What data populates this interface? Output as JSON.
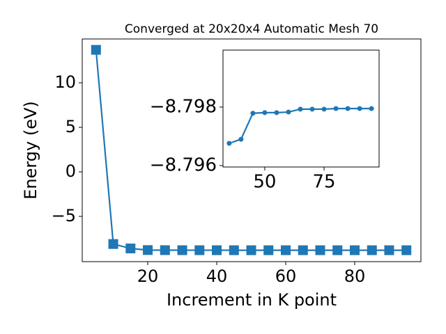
{
  "chart_data": [
    {
      "type": "line",
      "title": "Converged at 20x20x4 Automatic Mesh 70",
      "x_label": "Increment in K point",
      "y_label": "Energy (eV)",
      "x": [
        5,
        10,
        15,
        20,
        25,
        30,
        35,
        40,
        45,
        50,
        55,
        60,
        65,
        70,
        75,
        80,
        85,
        90,
        95
      ],
      "values": [
        13.7,
        -8.1,
        -8.6,
        -8.78,
        -8.79,
        -8.795,
        -8.79676,
        -8.7969,
        -8.79779,
        -8.79781,
        -8.79781,
        -8.79783,
        -8.79793,
        -8.79793,
        -8.79793,
        -8.79795,
        -8.79795,
        -8.79795,
        -8.79795
      ],
      "color": "#1f77b4",
      "marker": "square",
      "xlim": [
        1.0,
        99.2
      ],
      "ylim": [
        -10.08,
        14.92
      ],
      "xticks": [
        20,
        40,
        60,
        80
      ],
      "yticks": [
        {
          "value": -5,
          "label": "−5"
        },
        0,
        5,
        10
      ]
    },
    {
      "type": "line",
      "x": [
        35,
        40,
        45,
        50,
        55,
        60,
        65,
        70,
        75,
        80,
        85,
        90,
        95
      ],
      "values": [
        -8.79676,
        -8.7969,
        -8.79779,
        -8.79781,
        -8.79781,
        -8.79783,
        -8.79793,
        -8.79793,
        -8.79793,
        -8.79795,
        -8.79795,
        -8.79795,
        -8.79795
      ],
      "color": "#1f77b4",
      "marker": "circle",
      "xlim": [
        32.4,
        98.2
      ],
      "ylim": [
        -8.79595,
        -8.79995
      ],
      "xticks": [
        50,
        75
      ],
      "yticks": [
        {
          "value": -8.798,
          "label": "−8.798"
        },
        {
          "value": -8.796,
          "label": "−8.796"
        }
      ]
    }
  ]
}
